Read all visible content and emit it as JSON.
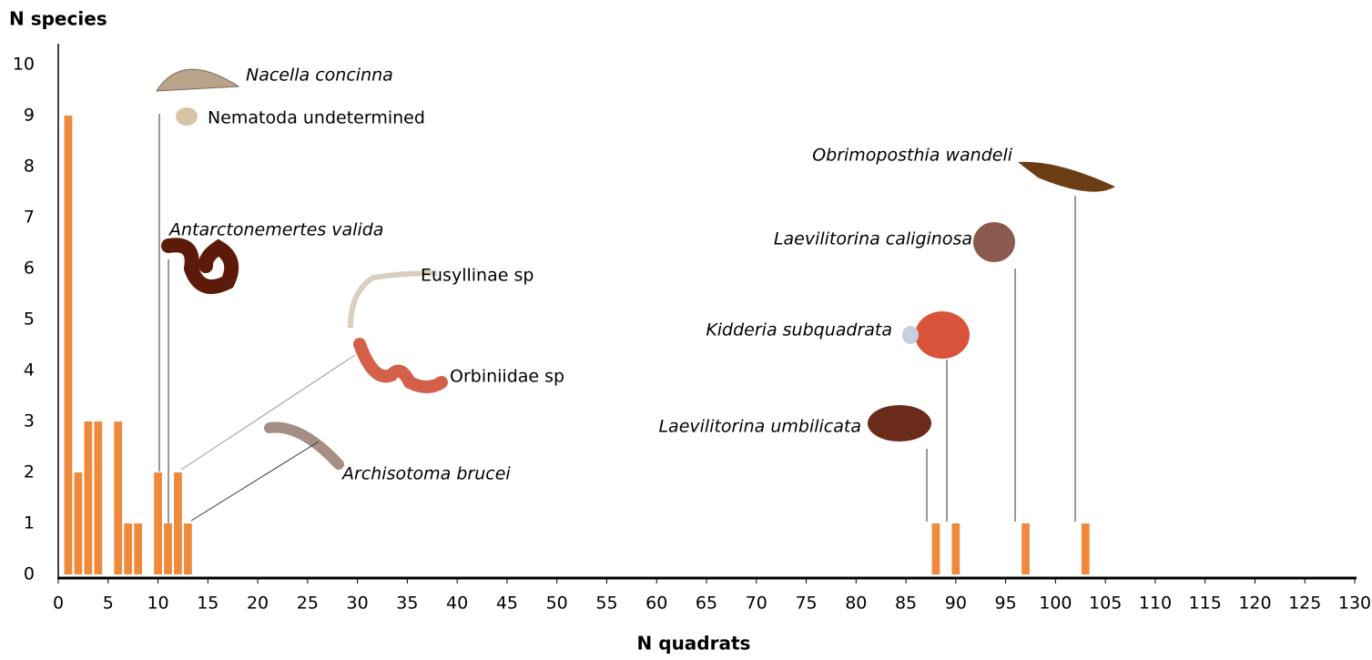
{
  "chart_data": {
    "type": "bar",
    "y_label": "N species",
    "x_label": "N quadrats",
    "x": [
      1,
      2,
      3,
      4,
      6,
      7,
      8,
      10,
      11,
      12,
      13,
      88,
      90,
      97,
      103
    ],
    "values": [
      9,
      2,
      3,
      3,
      3,
      1,
      1,
      2,
      1,
      2,
      1,
      1,
      1,
      1,
      1
    ],
    "color": "#ef8a3c",
    "xlim": [
      0,
      130
    ],
    "xticks": [
      0,
      5,
      10,
      15,
      20,
      25,
      30,
      35,
      40,
      45,
      50,
      55,
      60,
      65,
      70,
      75,
      80,
      85,
      90,
      95,
      100,
      105,
      110,
      115,
      120,
      125,
      130
    ],
    "ylim": [
      0,
      10
    ],
    "yticks": [
      0,
      1,
      2,
      3,
      4,
      5,
      6,
      7,
      8,
      9,
      10
    ],
    "annotations": [
      "Nacella concinna",
      "Nematoda undetermined",
      "Antarctonemertes valida",
      "Eusyllinae sp",
      "Orbiniidae sp",
      "Archisotoma brucei",
      "Obrimoposthia wandeli",
      "Laevilitorina caliginosa",
      "Kidderia subquadrata",
      "Laevilitorina umbilicata"
    ]
  }
}
